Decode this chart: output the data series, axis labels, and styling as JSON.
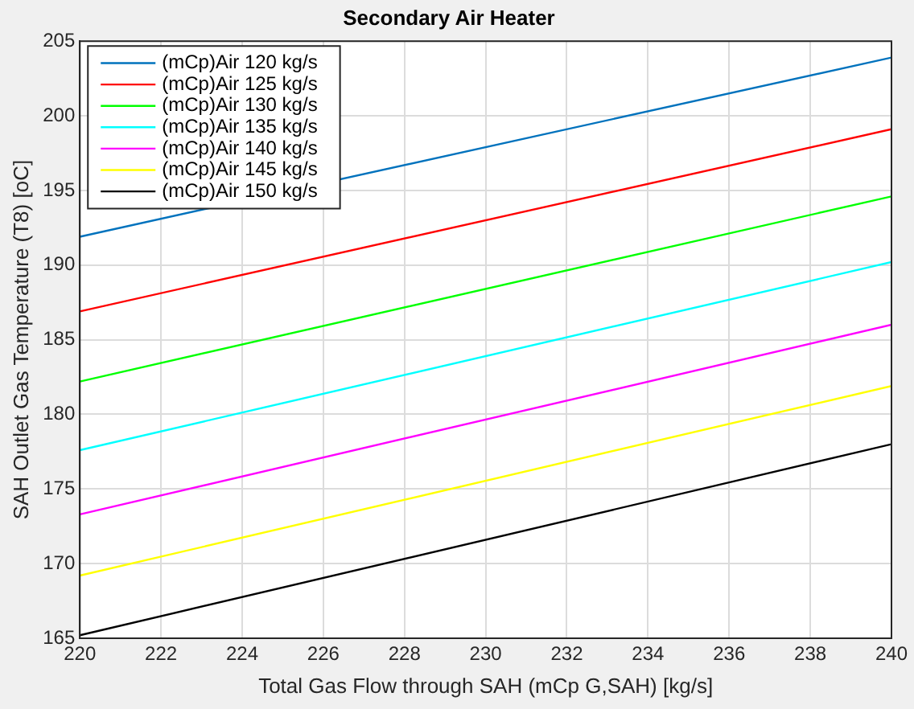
{
  "chart_data": {
    "type": "line",
    "title": "Secondary Air Heater",
    "xlabel": "Total Gas Flow through SAH (mCp G,SAH) [kg/s]",
    "ylabel": "SAH Outlet Gas Temperature (T8) [oC]",
    "x": [
      220,
      240
    ],
    "series": [
      {
        "name": "(mCp)Air 120 kg/s",
        "color": "#0072bd",
        "values": [
          191.9,
          203.9
        ]
      },
      {
        "name": "(mCp)Air 125 kg/s",
        "color": "#ff0000",
        "values": [
          186.9,
          199.1
        ]
      },
      {
        "name": "(mCp)Air 130 kg/s",
        "color": "#00ff00",
        "values": [
          182.2,
          194.6
        ]
      },
      {
        "name": "(mCp)Air 135 kg/s",
        "color": "#00ffff",
        "values": [
          177.6,
          190.2
        ]
      },
      {
        "name": "(mCp)Air 140 kg/s",
        "color": "#ff00ff",
        "values": [
          173.3,
          186.0
        ]
      },
      {
        "name": "(mCp)Air 145 kg/s",
        "color": "#ffff00",
        "values": [
          169.2,
          181.9
        ]
      },
      {
        "name": "(mCp)Air 150 kg/s",
        "color": "#000000",
        "values": [
          165.2,
          178.0
        ]
      }
    ],
    "xlim": [
      220,
      240
    ],
    "xticks": [
      220,
      222,
      224,
      226,
      228,
      230,
      232,
      234,
      236,
      238,
      240
    ],
    "ylim": [
      165,
      205
    ],
    "yticks": [
      165,
      170,
      175,
      180,
      185,
      190,
      195,
      200,
      205
    ],
    "grid": true,
    "legend": "top left",
    "marker": "none",
    "line_style": "solid"
  }
}
